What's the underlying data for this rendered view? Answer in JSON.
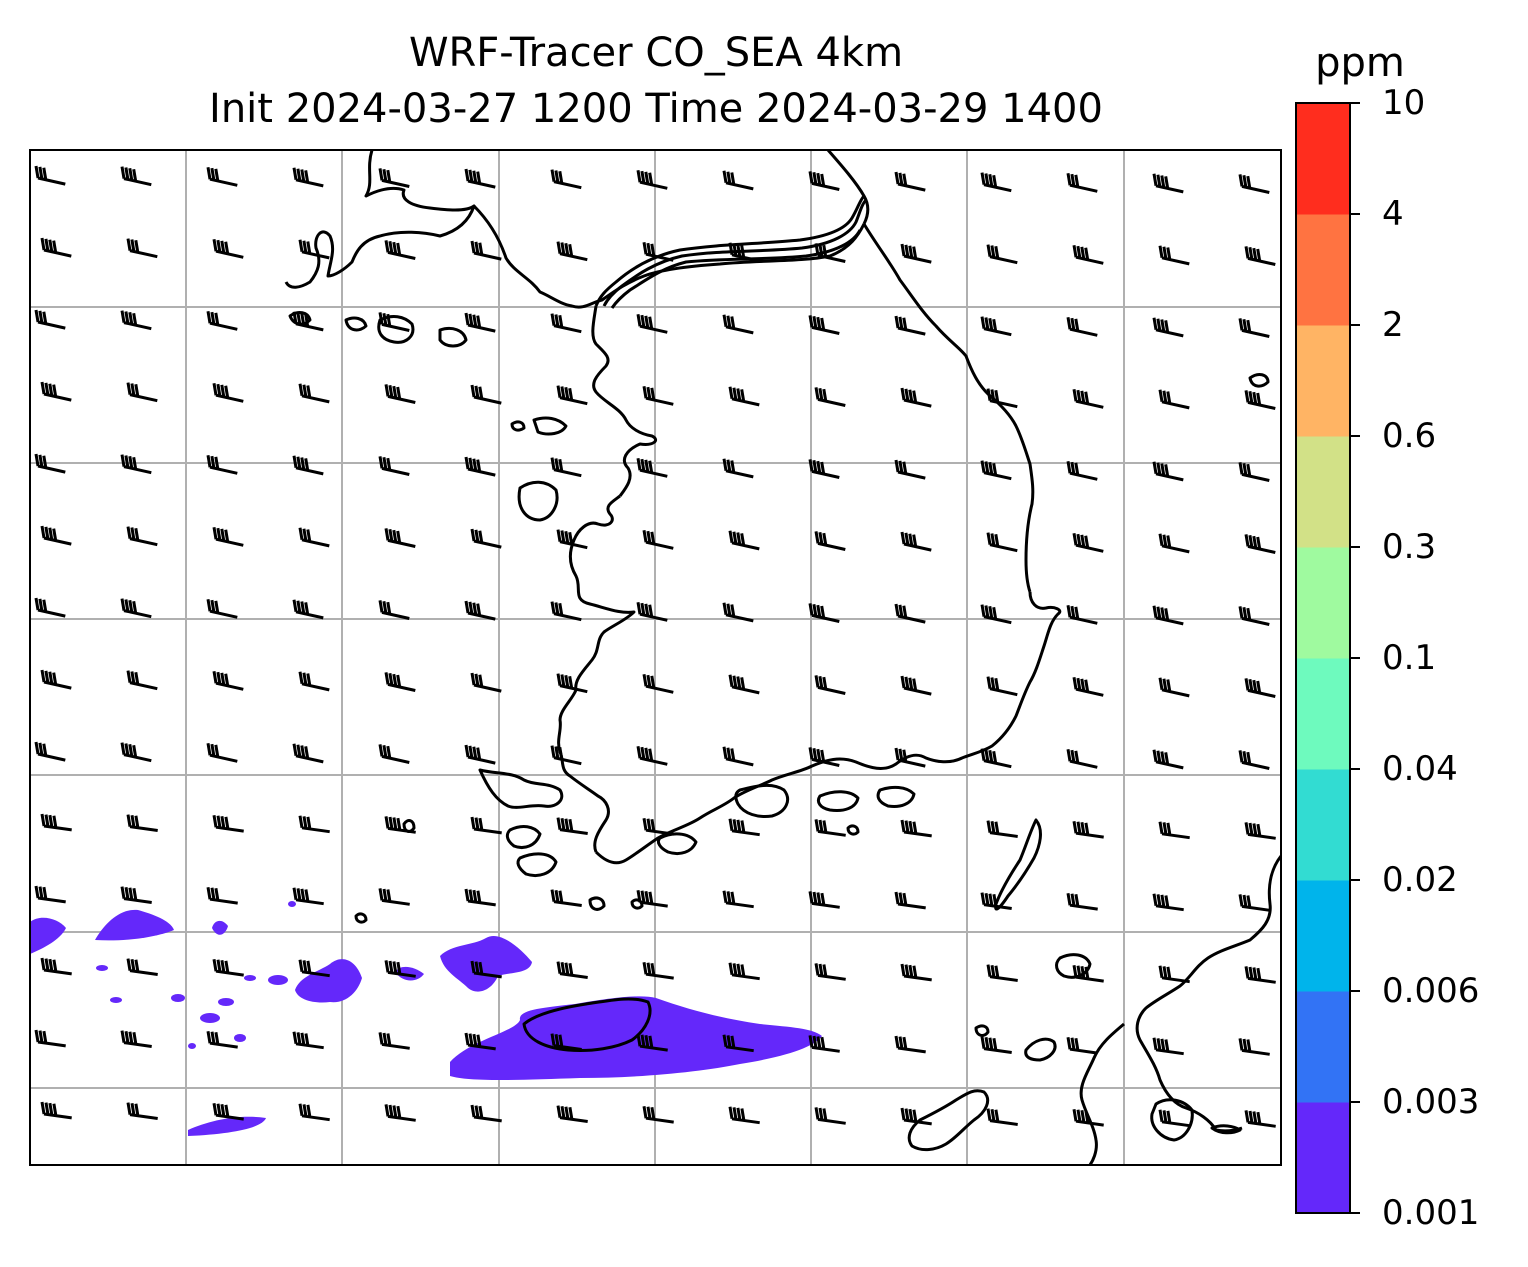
{
  "title": {
    "line1": "WRF-Tracer CO_SEA 4km",
    "line2": "Init 2024-03-27 1200 Time 2024-03-29 1400"
  },
  "colorbar": {
    "unit": "ppm",
    "levels": [
      "0.001",
      "0.003",
      "0.006",
      "0.02",
      "0.04",
      "0.1",
      "0.3",
      "0.6",
      "2",
      "4",
      "10"
    ],
    "colors": [
      "#6428fa",
      "#3273f5",
      "#00b4eb",
      "#32dcd2",
      "#6efabe",
      "#9ffa9f",
      "#d2e187",
      "#ffb464",
      "#ff7341",
      "#ff2d1e"
    ]
  },
  "map": {
    "tracer_fill_color": "#6428fa",
    "coastline_color": "#000000",
    "gridline_color": "#b0b0b0",
    "wind_barb_color": "#000000"
  }
}
